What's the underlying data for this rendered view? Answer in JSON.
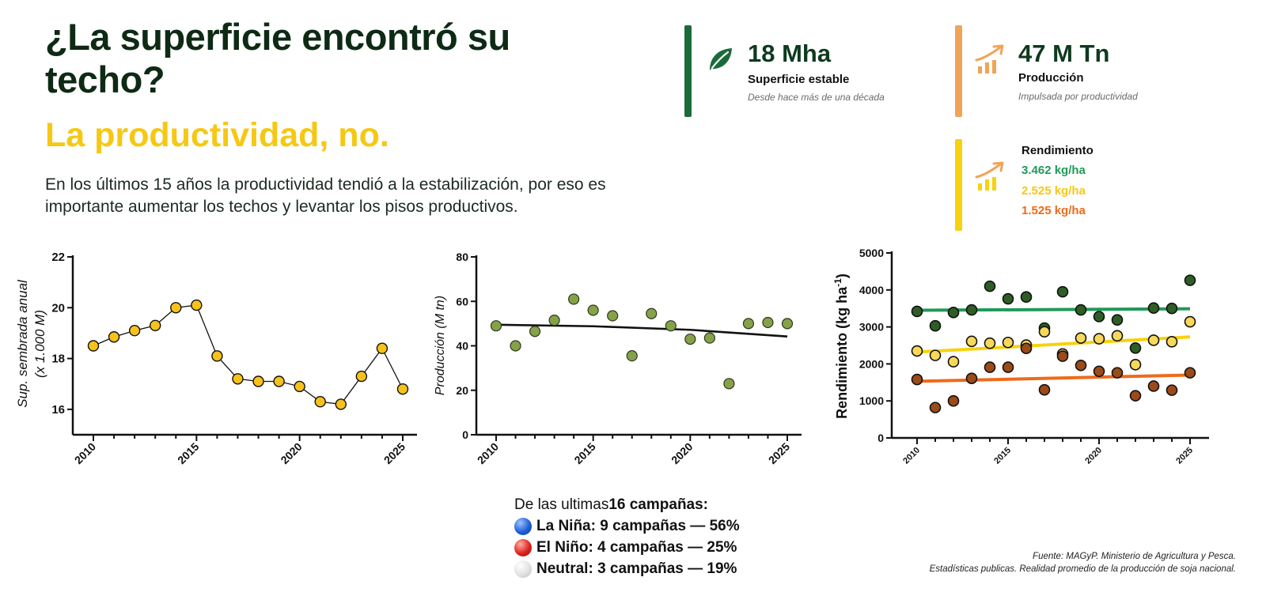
{
  "header": {
    "title": "¿La superficie encontró su techo?",
    "subtitle": "La productividad, no.",
    "intro": "En los últimos 15 años la productividad tendió a la estabilización, por eso es importante aumentar los techos y levantar los pisos productivos."
  },
  "kpis": {
    "surface": {
      "value": "18 Mha",
      "label": "Superficie estable",
      "note": "Desde hace más de una década",
      "color": "#1b6b3a",
      "icon": "leaf-icon"
    },
    "production": {
      "value": "47 M Tn",
      "label": "Producción",
      "note": "Impulsada por productividad",
      "color": "#f0a458",
      "icon": "growth-chart-icon"
    },
    "yield": {
      "label": "Rendimiento",
      "color": "#f6d20f",
      "icon": "growth-chart-icon",
      "lines": [
        {
          "text": "3.462 kg/ha",
          "color": "#1f9a57"
        },
        {
          "text": "2.525 kg/ha",
          "color": "#f6c814"
        },
        {
          "text": "1.525 kg/ha",
          "color": "#ee6a1c"
        }
      ]
    }
  },
  "chart_data": [
    {
      "type": "line",
      "ylabel": "Sup. sembrada anual (x 1.000 M)",
      "xlim": [
        2010,
        2025
      ],
      "ylim": [
        15,
        22
      ],
      "yticks": [
        16,
        18,
        20,
        22
      ],
      "xticks": [
        2010,
        2015,
        2020,
        2025
      ],
      "marker_color": "#f6c21b",
      "x": [
        2010,
        2011,
        2012,
        2013,
        2014,
        2015,
        2016,
        2017,
        2018,
        2019,
        2020,
        2021,
        2022,
        2023,
        2024,
        2025
      ],
      "y": [
        18.5,
        18.85,
        19.1,
        19.3,
        20.0,
        20.1,
        18.1,
        17.2,
        17.1,
        17.1,
        16.9,
        16.3,
        16.2,
        17.3,
        18.4,
        16.8
      ]
    },
    {
      "type": "scatter",
      "ylabel": "Producción (M tn)",
      "xlim": [
        2010,
        2025
      ],
      "ylim": [
        0,
        80
      ],
      "yticks": [
        0,
        20,
        40,
        60,
        80
      ],
      "xticks": [
        2010,
        2015,
        2020,
        2025
      ],
      "marker_color": "#86a14a",
      "x": [
        2010,
        2011,
        2012,
        2013,
        2014,
        2015,
        2016,
        2017,
        2018,
        2019,
        2020,
        2021,
        2022,
        2023,
        2024,
        2025
      ],
      "y": [
        49,
        40,
        46.5,
        51.5,
        61,
        56,
        53.5,
        35.5,
        54.5,
        49,
        43,
        43.5,
        23,
        50,
        50.5,
        50
      ],
      "trend": [
        [
          2010,
          49.5
        ],
        [
          2015,
          48.8
        ],
        [
          2020,
          47.2
        ],
        [
          2025,
          44.2
        ]
      ]
    },
    {
      "type": "scatter",
      "ylabel": "Rendimiento (kg ha⁻¹)",
      "xlim": [
        2010,
        2025
      ],
      "ylim": [
        0,
        5000
      ],
      "yticks": [
        0,
        1000,
        2000,
        3000,
        4000,
        5000
      ],
      "xticks": [
        2010,
        2015,
        2020,
        2025
      ],
      "series": [
        {
          "color": "#2e5e26",
          "trend_color": "#1f9a57",
          "x": [
            2010,
            2011,
            2012,
            2013,
            2014,
            2015,
            2016,
            2017,
            2018,
            2019,
            2020,
            2021,
            2022,
            2023,
            2024,
            2025
          ],
          "y": [
            3420,
            3030,
            3390,
            3460,
            4100,
            3760,
            3810,
            2970,
            3950,
            3460,
            3280,
            3190,
            2430,
            3510,
            3500,
            4260
          ],
          "trend": [
            3450,
            3490
          ]
        },
        {
          "color": "#f8d85a",
          "trend_color": "#f6d20f",
          "x": [
            2010,
            2011,
            2012,
            2013,
            2014,
            2015,
            2016,
            2017,
            2018,
            2019,
            2020,
            2021,
            2022,
            2023,
            2024,
            2025
          ],
          "y": [
            2350,
            2230,
            2060,
            2610,
            2560,
            2580,
            2510,
            2870,
            2270,
            2700,
            2680,
            2760,
            1980,
            2640,
            2600,
            3140
          ],
          "trend": [
            2320,
            2730
          ]
        },
        {
          "color": "#9b4a18",
          "trend_color": "#ee6a1c",
          "x": [
            2010,
            2011,
            2012,
            2013,
            2014,
            2015,
            2016,
            2017,
            2018,
            2019,
            2020,
            2021,
            2022,
            2023,
            2024,
            2025
          ],
          "y": [
            1580,
            820,
            1000,
            1610,
            1910,
            1910,
            2420,
            1300,
            2210,
            1960,
            1800,
            1760,
            1140,
            1400,
            1290,
            1760
          ],
          "trend": [
            1530,
            1700
          ]
        }
      ]
    }
  ],
  "summary": {
    "intro": "De las ultimas",
    "highlight": "16 campañas:",
    "items": [
      {
        "text": "La Niña: 9 campañas — 56%",
        "color": "#1f5fd6",
        "icon": "blue-circle-icon"
      },
      {
        "text": "El Niño: 4 campañas — 25%",
        "color": "#e02222",
        "icon": "red-circle-icon"
      },
      {
        "text": "Neutral: 3 campañas — 19%",
        "color": "#e2e2e2",
        "icon": "white-circle-icon"
      }
    ]
  },
  "source": {
    "line1": "Fuente: MAGyP. Ministerio de Agricultura y Pesca.",
    "line2": "Estadísticas publicas. Realidad promedio de la producción de soja nacional."
  }
}
